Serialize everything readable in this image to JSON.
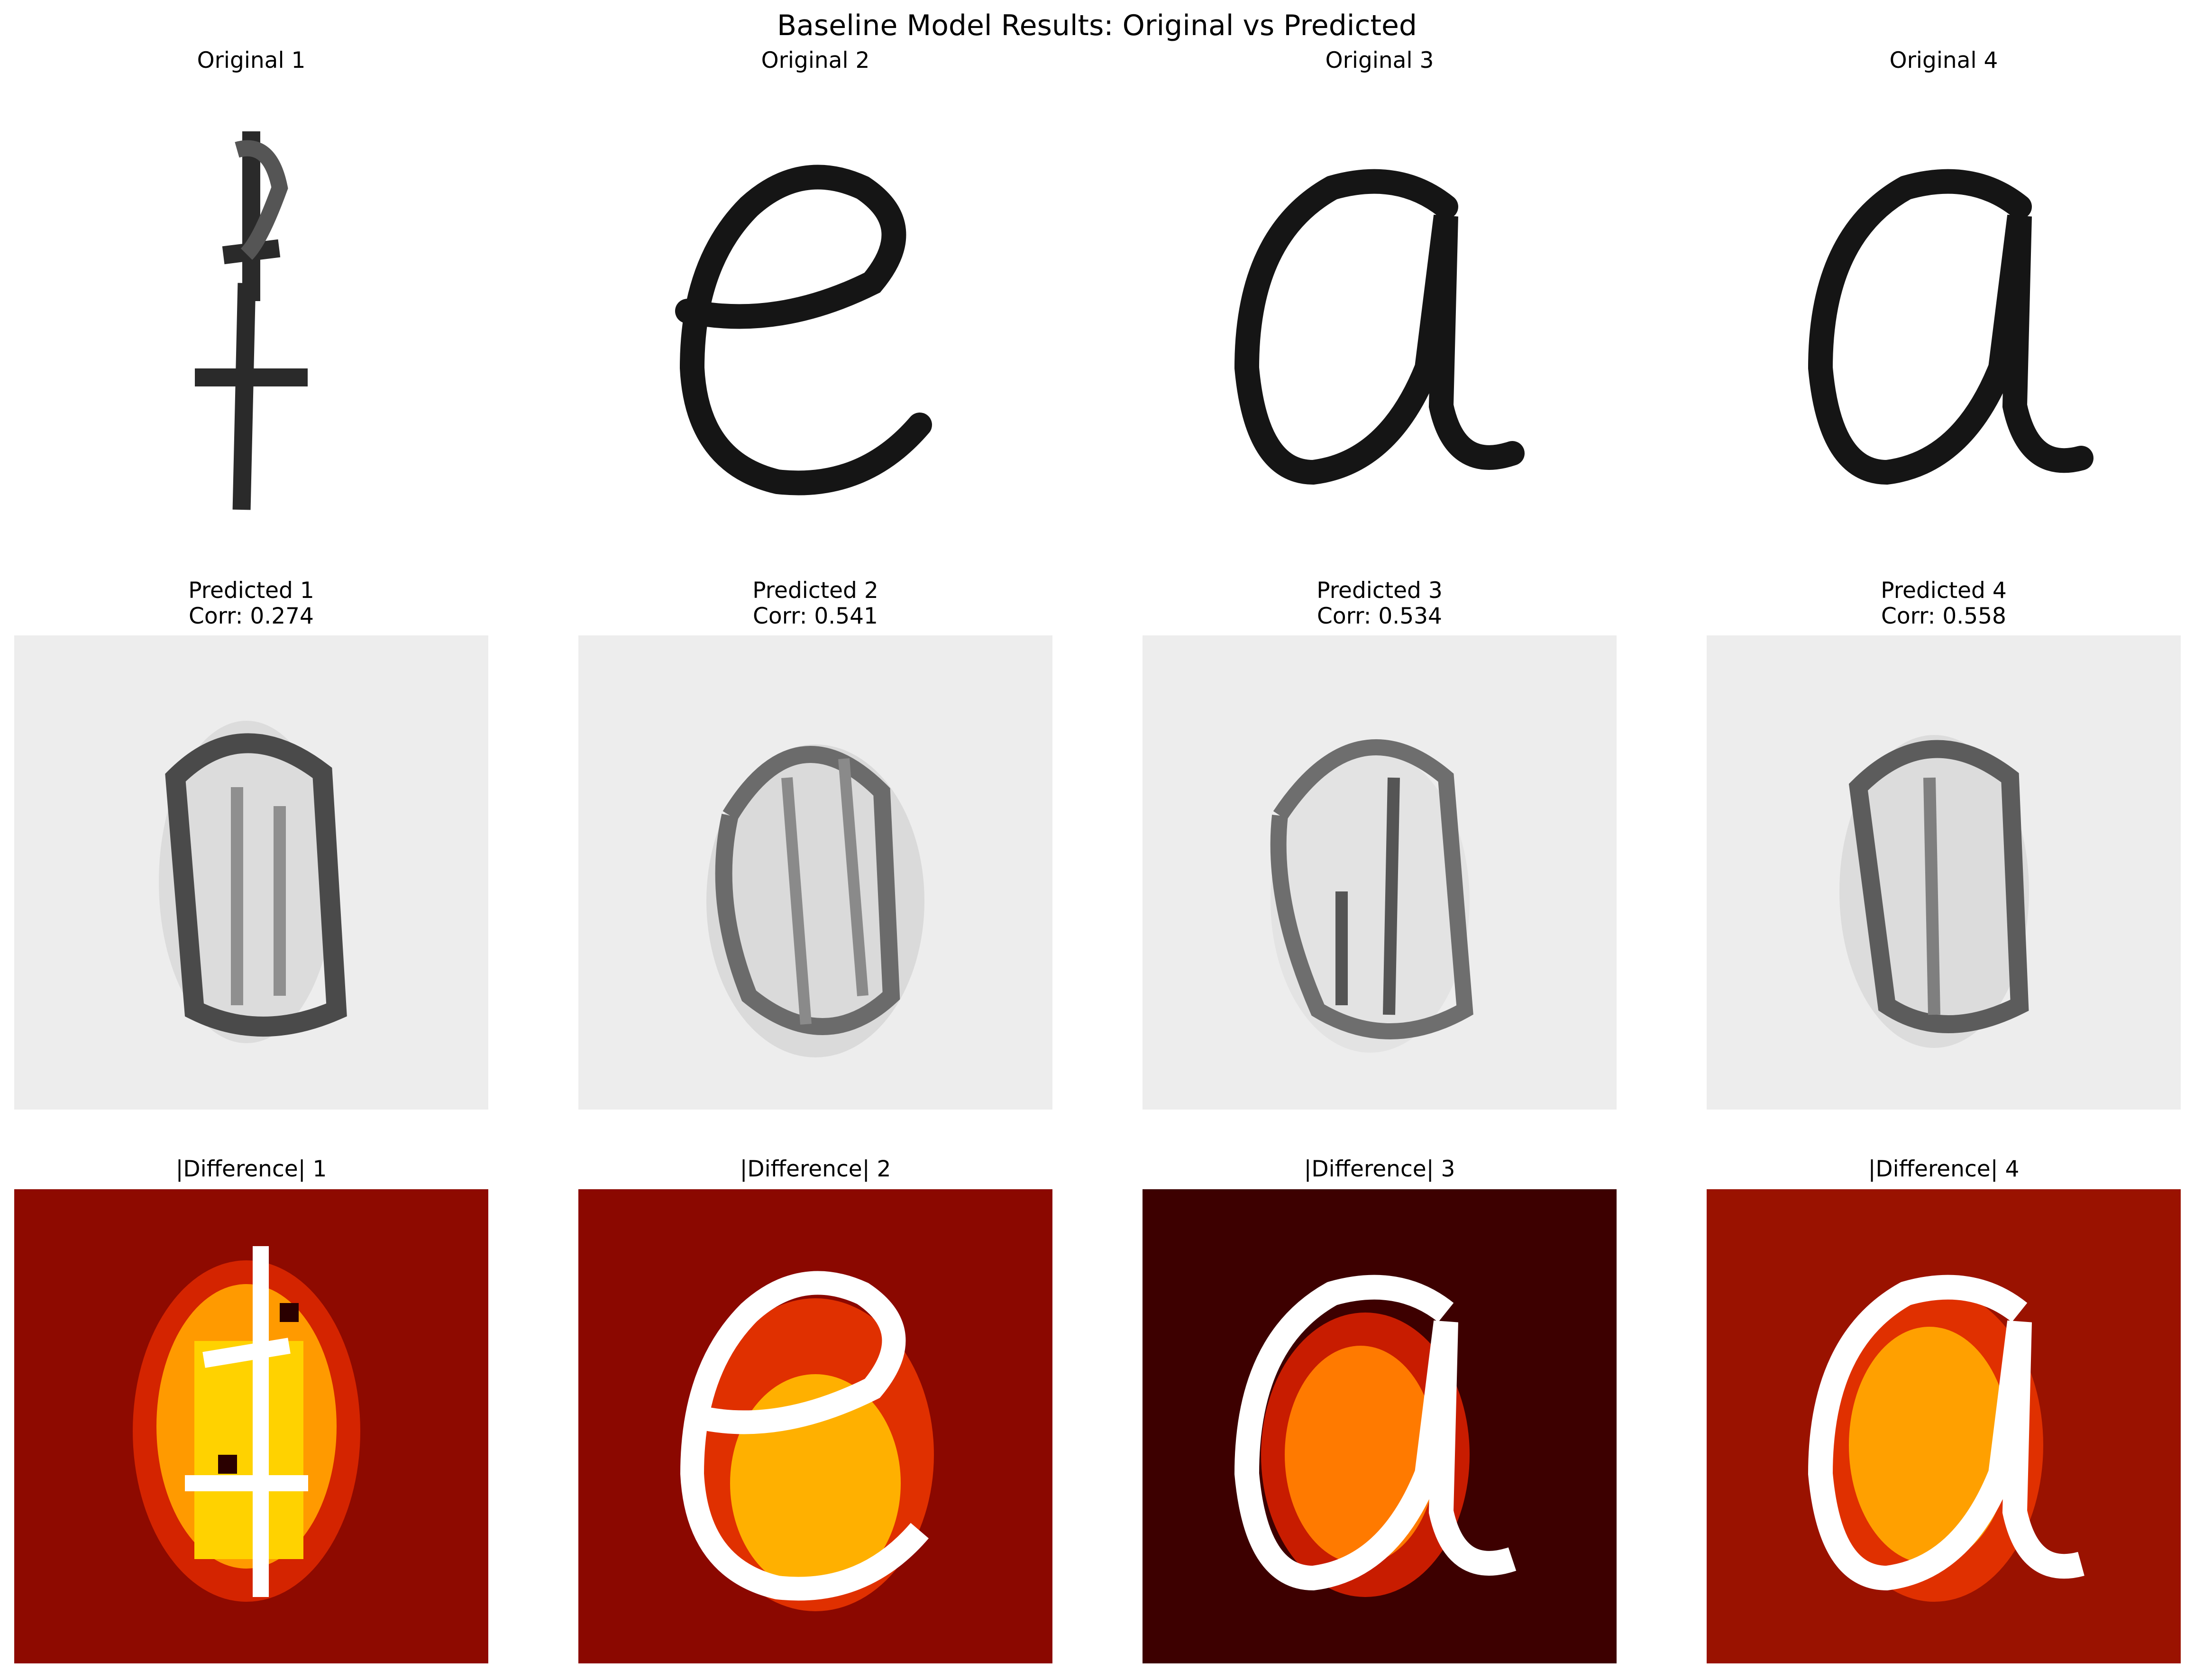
{
  "figure": {
    "title": "Baseline Model Results: Original vs Predicted"
  },
  "rows": {
    "original": [
      {
        "title": "Original 1",
        "glyph": "l"
      },
      {
        "title": "Original 2",
        "glyph": "e"
      },
      {
        "title": "Original 3",
        "glyph": "a"
      },
      {
        "title": "Original 4",
        "glyph": "a"
      }
    ],
    "predicted": [
      {
        "title": "Predicted 1",
        "corr": "Corr: 0.274"
      },
      {
        "title": "Predicted 2",
        "corr": "Corr: 0.541"
      },
      {
        "title": "Predicted 3",
        "corr": "Corr: 0.534"
      },
      {
        "title": "Predicted 4",
        "corr": "Corr: 0.558"
      }
    ],
    "difference": [
      {
        "title": "|Difference| 1"
      },
      {
        "title": "|Difference| 2"
      },
      {
        "title": "|Difference| 3"
      },
      {
        "title": "|Difference| 4"
      }
    ]
  },
  "colormaps": {
    "original": "gray_r",
    "predicted": "gray_r",
    "difference": "hot"
  }
}
